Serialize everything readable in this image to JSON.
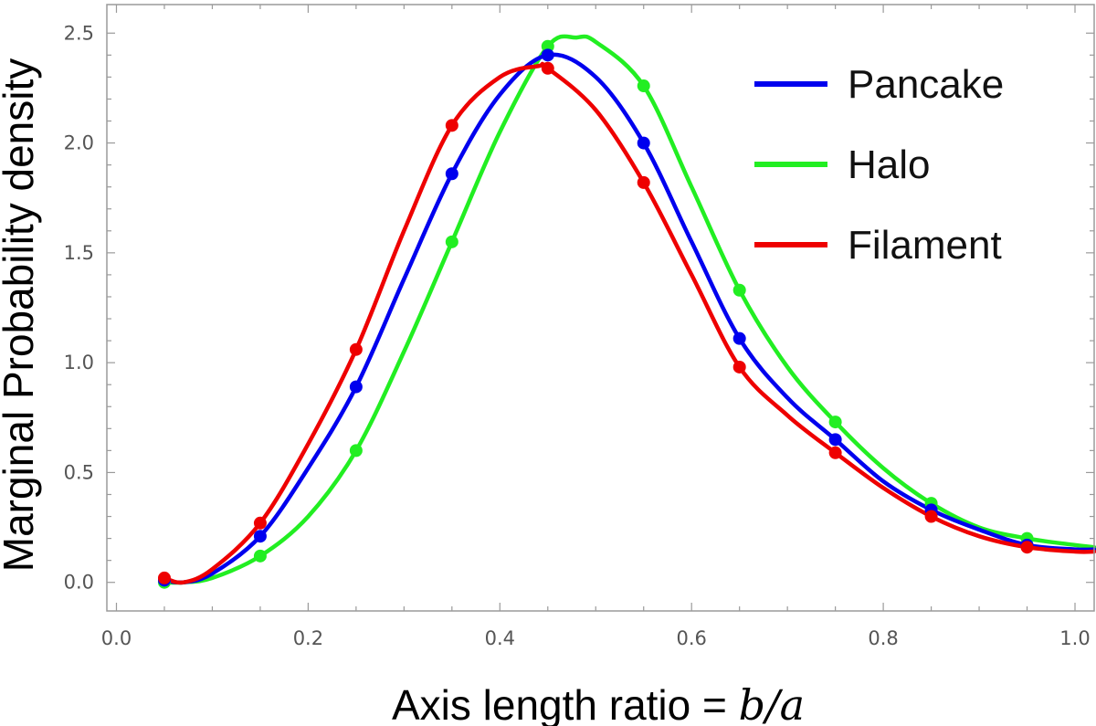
{
  "chart_data": {
    "type": "line",
    "title": "",
    "xlabel": "Axis length ratio = b/a",
    "xlabel_prefix": "Axis length ratio = ",
    "xlabel_math": "b/a",
    "ylabel": "Marginal Probability density",
    "xlim": [
      -0.01,
      1.02
    ],
    "ylim": [
      -0.13,
      2.63
    ],
    "x_ticks": [
      0.0,
      0.2,
      0.4,
      0.6,
      0.8,
      1.0
    ],
    "x_tick_labels": [
      "0.0",
      "0.2",
      "0.4",
      "0.6",
      "0.8",
      "1.0"
    ],
    "y_ticks": [
      0.0,
      0.5,
      1.0,
      1.5,
      2.0,
      2.5
    ],
    "y_tick_labels": [
      "0.0",
      "0.5",
      "1.0",
      "1.5",
      "2.0",
      "2.5"
    ],
    "grid": false,
    "legend_position": "top-right",
    "x": [
      0.05,
      0.15,
      0.25,
      0.35,
      0.45,
      0.55,
      0.65,
      0.75,
      0.85,
      0.95
    ],
    "series": [
      {
        "name": "Pancake",
        "color": "#0000ee",
        "values": [
          0.01,
          0.21,
          0.89,
          1.86,
          2.4,
          2.0,
          1.11,
          0.65,
          0.33,
          0.17
        ],
        "curve": [
          [
            0.05,
            0.01
          ],
          [
            0.07,
            0.0
          ],
          [
            0.1,
            0.04
          ],
          [
            0.15,
            0.21
          ],
          [
            0.2,
            0.52
          ],
          [
            0.25,
            0.89
          ],
          [
            0.3,
            1.38
          ],
          [
            0.35,
            1.86
          ],
          [
            0.4,
            2.22
          ],
          [
            0.45,
            2.4
          ],
          [
            0.5,
            2.3
          ],
          [
            0.55,
            2.0
          ],
          [
            0.6,
            1.55
          ],
          [
            0.65,
            1.11
          ],
          [
            0.7,
            0.84
          ],
          [
            0.75,
            0.65
          ],
          [
            0.8,
            0.46
          ],
          [
            0.85,
            0.33
          ],
          [
            0.9,
            0.24
          ],
          [
            0.95,
            0.17
          ],
          [
            1.0,
            0.15
          ],
          [
            1.02,
            0.15
          ]
        ]
      },
      {
        "name": "Halo",
        "color": "#22ee22",
        "values": [
          0.0,
          0.12,
          0.6,
          1.55,
          2.44,
          2.26,
          1.33,
          0.73,
          0.36,
          0.2
        ],
        "curve": [
          [
            0.05,
            0.0
          ],
          [
            0.07,
            0.0
          ],
          [
            0.1,
            0.02
          ],
          [
            0.15,
            0.12
          ],
          [
            0.2,
            0.3
          ],
          [
            0.25,
            0.6
          ],
          [
            0.3,
            1.05
          ],
          [
            0.35,
            1.55
          ],
          [
            0.4,
            2.05
          ],
          [
            0.45,
            2.44
          ],
          [
            0.48,
            2.48
          ],
          [
            0.5,
            2.46
          ],
          [
            0.55,
            2.26
          ],
          [
            0.6,
            1.8
          ],
          [
            0.65,
            1.33
          ],
          [
            0.7,
            0.98
          ],
          [
            0.75,
            0.73
          ],
          [
            0.8,
            0.52
          ],
          [
            0.85,
            0.36
          ],
          [
            0.9,
            0.25
          ],
          [
            0.95,
            0.2
          ],
          [
            1.0,
            0.17
          ],
          [
            1.02,
            0.16
          ]
        ]
      },
      {
        "name": "Filament",
        "color": "#ee0000",
        "values": [
          0.02,
          0.27,
          1.06,
          2.08,
          2.34,
          1.82,
          0.98,
          0.59,
          0.3,
          0.16
        ],
        "curve": [
          [
            0.05,
            0.02
          ],
          [
            0.07,
            0.0
          ],
          [
            0.1,
            0.06
          ],
          [
            0.15,
            0.27
          ],
          [
            0.2,
            0.63
          ],
          [
            0.25,
            1.06
          ],
          [
            0.3,
            1.6
          ],
          [
            0.35,
            2.08
          ],
          [
            0.4,
            2.3
          ],
          [
            0.44,
            2.35
          ],
          [
            0.45,
            2.34
          ],
          [
            0.5,
            2.15
          ],
          [
            0.55,
            1.82
          ],
          [
            0.6,
            1.4
          ],
          [
            0.65,
            0.98
          ],
          [
            0.7,
            0.76
          ],
          [
            0.75,
            0.59
          ],
          [
            0.8,
            0.43
          ],
          [
            0.85,
            0.3
          ],
          [
            0.9,
            0.21
          ],
          [
            0.95,
            0.16
          ],
          [
            1.0,
            0.14
          ],
          [
            1.02,
            0.14
          ]
        ]
      }
    ]
  }
}
